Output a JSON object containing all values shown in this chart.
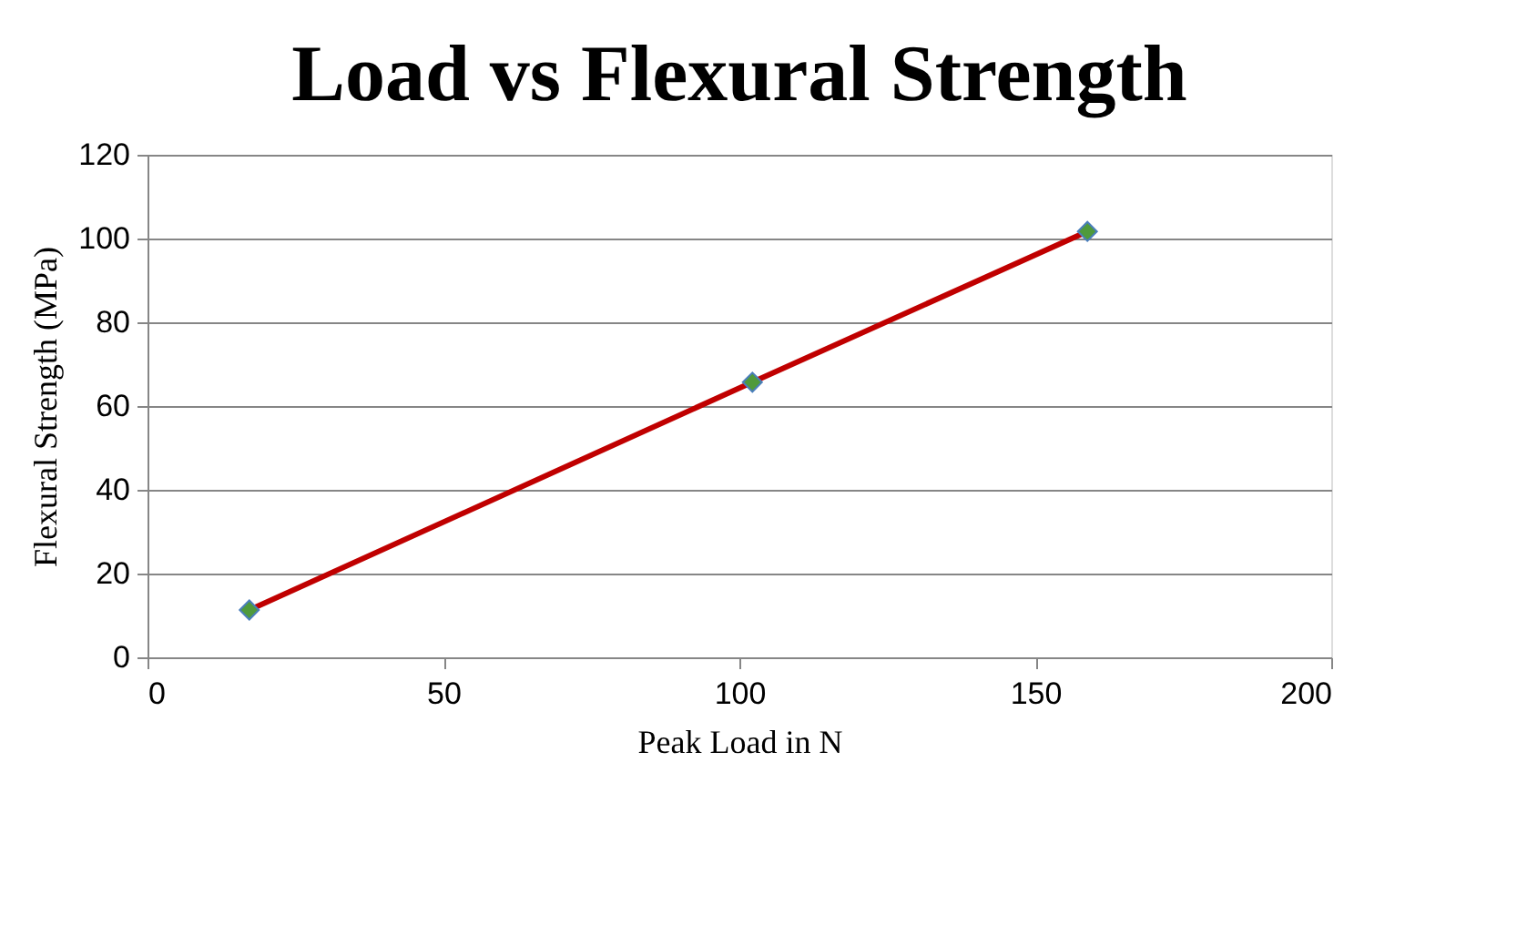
{
  "chart_data": {
    "type": "scatter",
    "title": "Load vs Flexural Strength",
    "xlabel": "Peak Load in N",
    "ylabel": "Flexural Strength (MPa)",
    "xlim": [
      0,
      200
    ],
    "xticks": [
      0,
      50,
      100,
      150,
      200
    ],
    "ylim": [
      0,
      120
    ],
    "yticks": [
      0,
      20,
      40,
      60,
      80,
      100,
      120
    ],
    "grid": "y",
    "series": [
      {
        "type": "line",
        "color": "#c00000",
        "x": [
          17.2,
          102.2,
          158.8
        ],
        "values": [
          11.3,
          65.7,
          101.7
        ],
        "line_style": "solid",
        "marker": "none"
      },
      {
        "color": "#4f9a3c",
        "x": [
          17.2,
          102.2,
          158.8
        ],
        "values": [
          11.3,
          65.7,
          101.7
        ],
        "marker": "diamond"
      }
    ]
  }
}
